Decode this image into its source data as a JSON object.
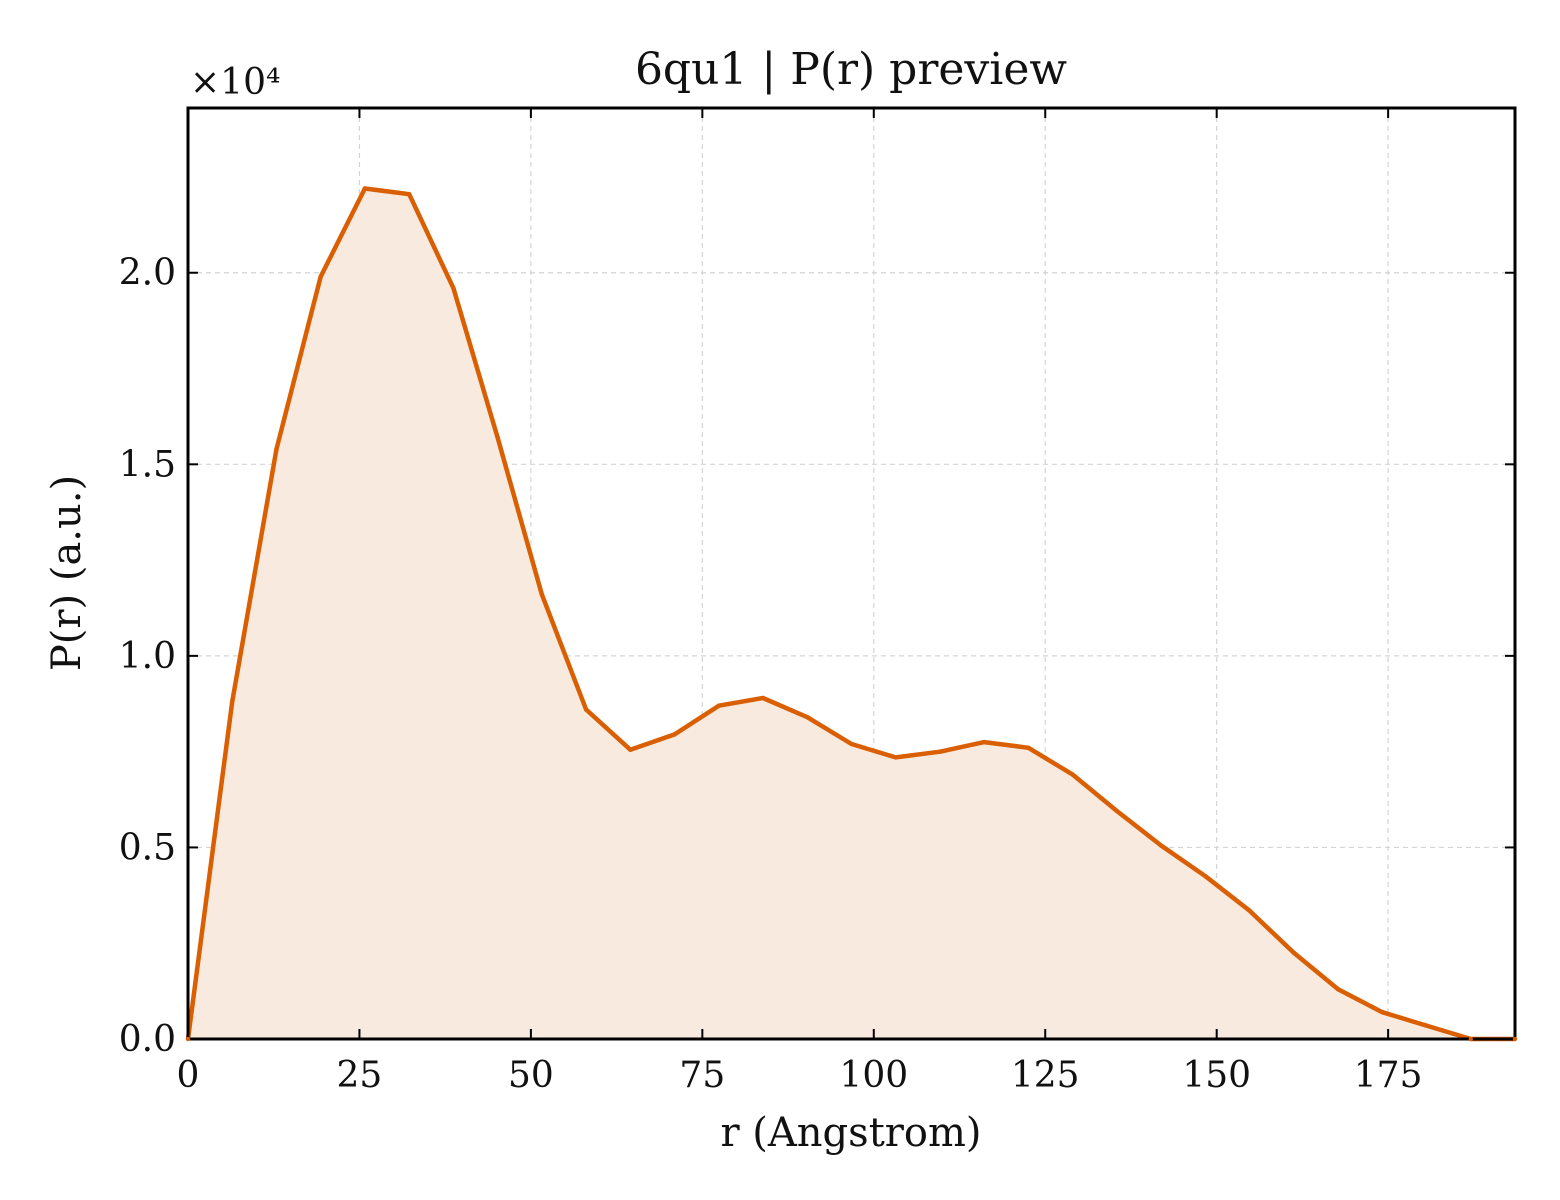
{
  "chart_data": {
    "type": "area",
    "title": "6qu1 | P(r) preview",
    "xlabel": "r (Angstrom)",
    "ylabel": "P(r) (a.u.)",
    "y_offset_label": "×10⁴",
    "xlim": [
      0,
      193.5
    ],
    "ylim": [
      0,
      24300
    ],
    "x_ticks": [
      0,
      25,
      50,
      75,
      100,
      125,
      150,
      175
    ],
    "y_ticks": [
      0,
      5000,
      10000,
      15000,
      20000
    ],
    "x_tick_labels": [
      "0",
      "25",
      "50",
      "75",
      "100",
      "125",
      "150",
      "175"
    ],
    "y_tick_labels": [
      "0.0",
      "0.5",
      "1.0",
      "1.5",
      "2.0"
    ],
    "grid": true,
    "line_color": "#d95f02",
    "fill_color": "#f9eadf",
    "series": [
      {
        "x": [
          0,
          6.45,
          12.9,
          19.35,
          25.8,
          32.25,
          38.7,
          45.15,
          51.6,
          58.05,
          64.5,
          70.95,
          77.4,
          83.85,
          90.3,
          96.75,
          103.2,
          109.65,
          116.1,
          122.55,
          129.0,
          135.45,
          141.9,
          148.35,
          154.8,
          161.25,
          167.7,
          174.15,
          180.6,
          187.05,
          193.5
        ],
        "y": [
          0,
          8800,
          15400,
          19900,
          22200,
          22050,
          19600,
          15700,
          11600,
          8600,
          7550,
          7950,
          8700,
          8900,
          8400,
          7700,
          7350,
          7500,
          7750,
          7600,
          6900,
          5950,
          5050,
          4250,
          3350,
          2250,
          1300,
          700,
          350,
          0,
          0
        ]
      }
    ]
  }
}
